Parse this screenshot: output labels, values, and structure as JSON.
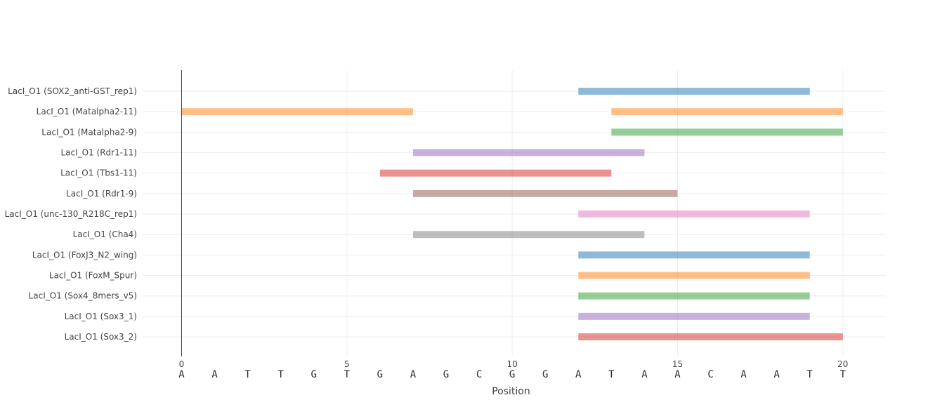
{
  "chart_data": {
    "type": "bar",
    "orientation": "horizontal-range",
    "xlabel": "Position",
    "xlim": [
      -1.2,
      21.3
    ],
    "x_ticks": [
      0,
      5,
      10,
      15,
      20
    ],
    "x_tick_labels": [
      "0",
      "5",
      "10",
      "15",
      "20"
    ],
    "sequence": [
      "A",
      "A",
      "T",
      "T",
      "G",
      "T",
      "G",
      "A",
      "G",
      "C",
      "G",
      "G",
      "A",
      "T",
      "A",
      "A",
      "C",
      "A",
      "A",
      "T",
      "T"
    ],
    "grid": true,
    "rows": [
      {
        "label": "LacI_O1 (SOX2_anti-GST_rep1)",
        "segments": [
          {
            "start": 12,
            "end": 19,
            "color": "#1f77b4"
          }
        ]
      },
      {
        "label": "LacI_O1 (Matalpha2-11)",
        "segments": [
          {
            "start": 0,
            "end": 7,
            "color": "#ff7f0e"
          },
          {
            "start": 13,
            "end": 20,
            "color": "#ff7f0e"
          }
        ]
      },
      {
        "label": "LacI_O1 (Matalpha2-9)",
        "segments": [
          {
            "start": 13,
            "end": 20,
            "color": "#2ca02c"
          }
        ]
      },
      {
        "label": "LacI_O1 (Rdr1-11)",
        "segments": [
          {
            "start": 7,
            "end": 14,
            "color": "#9467bd"
          }
        ]
      },
      {
        "label": "LacI_O1 (Tbs1-11)",
        "segments": [
          {
            "start": 6,
            "end": 13,
            "color": "#d62728"
          }
        ]
      },
      {
        "label": "LacI_O1 (Rdr1-9)",
        "segments": [
          {
            "start": 7,
            "end": 15,
            "color": "#8c564b"
          }
        ]
      },
      {
        "label": "LacI_O1 (unc-130_R218C_rep1)",
        "segments": [
          {
            "start": 12,
            "end": 19,
            "color": "#e377c2"
          }
        ]
      },
      {
        "label": "LacI_O1 (Cha4)",
        "segments": [
          {
            "start": 7,
            "end": 14,
            "color": "#7f7f7f"
          }
        ]
      },
      {
        "label": "LacI_O1 (FoxJ3_N2_wing)",
        "segments": [
          {
            "start": 12,
            "end": 19,
            "color": "#1f77b4"
          }
        ]
      },
      {
        "label": "LacI_O1 (FoxM_Spur)",
        "segments": [
          {
            "start": 12,
            "end": 19,
            "color": "#ff7f0e"
          }
        ]
      },
      {
        "label": "LacI_O1 (Sox4_8mers_v5)",
        "segments": [
          {
            "start": 12,
            "end": 19,
            "color": "#2ca02c"
          }
        ]
      },
      {
        "label": "LacI_O1 (Sox3_1)",
        "segments": [
          {
            "start": 12,
            "end": 19,
            "color": "#9467bd"
          }
        ]
      },
      {
        "label": "LacI_O1 (Sox3_2)",
        "segments": [
          {
            "start": 12,
            "end": 20,
            "color": "#d62728"
          }
        ]
      }
    ]
  }
}
